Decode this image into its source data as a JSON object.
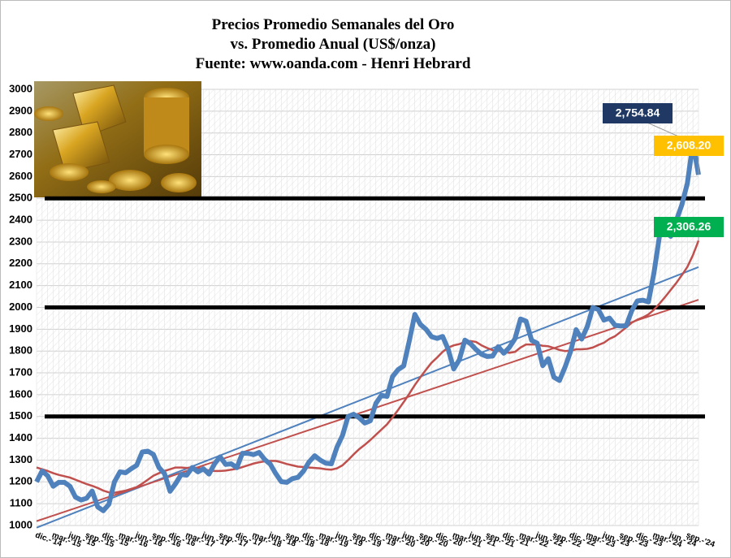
{
  "chart_data": {
    "type": "line",
    "title": [
      "Precios Promedio Semanales del Oro",
      "vs. Promedio Anual (US$/onza)",
      "Fuente: www.oanda.com - Henri Hebrard"
    ],
    "categories": [
      "dic.-'14",
      null,
      null,
      "mar.-'15",
      null,
      null,
      "jun.-'15",
      null,
      null,
      "sep.-'15",
      null,
      null,
      "dic.-'15",
      null,
      null,
      "mar.-'16",
      null,
      null,
      "jun.-'16",
      null,
      null,
      "sep.-'16",
      null,
      null,
      "dic.-'16",
      null,
      null,
      "mar.-'17",
      null,
      null,
      "jun.-'17",
      null,
      null,
      "sep.-'17",
      null,
      null,
      "dic.-'17",
      null,
      null,
      "mar.-'18",
      null,
      null,
      "jun.-'18",
      null,
      null,
      "sep.-'18",
      null,
      null,
      "dic.-'18",
      null,
      null,
      "mar.-'19",
      null,
      null,
      "jun.-'19",
      null,
      null,
      "sep.-'19",
      null,
      null,
      "dic.-'19",
      null,
      null,
      "mar.-'20",
      null,
      null,
      "jun.-'20",
      null,
      null,
      "sep.-'20",
      null,
      null,
      "dic.-'20",
      null,
      null,
      "mar.-'21",
      null,
      null,
      "jun.-'21",
      null,
      null,
      "sep.-'21",
      null,
      null,
      "dic.-'21",
      null,
      null,
      "mar.-'22",
      null,
      null,
      "jun.-'22",
      null,
      null,
      "sep.-'22",
      null,
      null,
      "dic.-'22",
      null,
      null,
      "mar.-'23",
      null,
      null,
      "jun.-'23",
      null,
      null,
      "sep.-'23",
      null,
      null,
      "dic.-'23",
      null,
      null,
      "mar.-'24",
      null,
      null,
      "jun.-'24",
      null,
      null,
      "sep.-'24",
      null,
      null
    ],
    "series": [
      {
        "color": "#4f81bd",
        "width": 6,
        "values": [
          1200,
          1250,
          1228,
          1180,
          1198,
          1198,
          1180,
          1130,
          1117,
          1125,
          1158,
          1085,
          1068,
          1097,
          1200,
          1246,
          1242,
          1260,
          1276,
          1337,
          1341,
          1326,
          1266,
          1238,
          1157,
          1192,
          1234,
          1231,
          1266,
          1246,
          1260,
          1236,
          1283,
          1315,
          1280,
          1283,
          1265,
          1331,
          1331,
          1325,
          1335,
          1303,
          1282,
          1238,
          1201,
          1198,
          1215,
          1221,
          1250,
          1292,
          1320,
          1300,
          1286,
          1283,
          1359,
          1413,
          1500,
          1510,
          1494,
          1470,
          1480,
          1560,
          1597,
          1592,
          1683,
          1715,
          1732,
          1846,
          1968,
          1922,
          1900,
          1866,
          1858,
          1867,
          1808,
          1718,
          1760,
          1850,
          1834,
          1807,
          1785,
          1775,
          1777,
          1820,
          1790,
          1817,
          1856,
          1947,
          1937,
          1849,
          1836,
          1733,
          1765,
          1680,
          1665,
          1726,
          1798,
          1898,
          1855,
          1912,
          2000,
          1990,
          1942,
          1951,
          1918,
          1915,
          1916,
          1985,
          2030,
          2033,
          2025,
          2160,
          2330,
          2350,
          2326,
          2398,
          2470,
          2570,
          2754.84,
          2608.2
        ]
      },
      {
        "color": "#c0504d",
        "width": 2.5,
        "values": [
          1266,
          1258,
          1250,
          1240,
          1232,
          1226,
          1220,
          1210,
          1200,
          1190,
          1182,
          1172,
          1160,
          1152,
          1150,
          1155,
          1160,
          1168,
          1176,
          1192,
          1210,
          1228,
          1240,
          1250,
          1258,
          1266,
          1266,
          1264,
          1266,
          1264,
          1260,
          1252,
          1250,
          1250,
          1252,
          1256,
          1260,
          1268,
          1276,
          1284,
          1290,
          1294,
          1296,
          1296,
          1290,
          1282,
          1276,
          1270,
          1268,
          1266,
          1264,
          1262,
          1258,
          1256,
          1262,
          1276,
          1300,
          1326,
          1350,
          1370,
          1392,
          1416,
          1440,
          1464,
          1496,
          1530,
          1566,
          1604,
          1644,
          1680,
          1714,
          1746,
          1770,
          1796,
          1816,
          1826,
          1832,
          1842,
          1846,
          1842,
          1826,
          1814,
          1804,
          1800,
          1796,
          1792,
          1796,
          1816,
          1830,
          1830,
          1830,
          1824,
          1822,
          1814,
          1805,
          1800,
          1802,
          1808,
          1808,
          1810,
          1816,
          1828,
          1838,
          1856,
          1868,
          1888,
          1908,
          1930,
          1944,
          1954,
          1968,
          1990,
          2018,
          2048,
          2080,
          2112,
          2148,
          2186,
          2240,
          2306.26
        ]
      }
    ],
    "trend_lines": [
      {
        "color": "#4f81bd",
        "values": [
          990,
          2185
        ]
      },
      {
        "color": "#c0504d",
        "values": [
          1020,
          2035
        ]
      }
    ],
    "reference_lines": [
      1500,
      2000,
      2500
    ],
    "callouts": [
      {
        "value": 2754.84,
        "label": "2,754.84",
        "color": "#1f3864"
      },
      {
        "value": 2608.2,
        "label": "2,608.20",
        "color": "#ffc000"
      },
      {
        "value": 2306.26,
        "label": "2,306.26",
        "color": "#00b050"
      }
    ],
    "ylim": [
      1000,
      3000
    ],
    "yticks": [
      1000,
      1100,
      1200,
      1300,
      1400,
      1500,
      1600,
      1700,
      1800,
      1900,
      2000,
      2100,
      2200,
      2300,
      2400,
      2500,
      2600,
      2700,
      2800,
      2900,
      3000
    ],
    "grid": true
  }
}
